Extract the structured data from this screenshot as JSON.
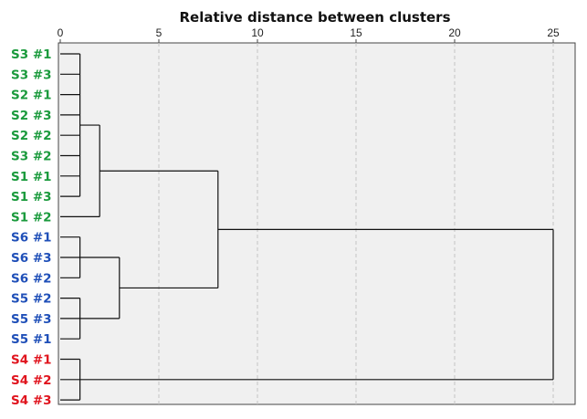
{
  "chart_data": {
    "type": "dendrogram",
    "title": "Relative distance between clusters",
    "xlim": [
      0,
      25
    ],
    "x_ticks": [
      0,
      5,
      10,
      15,
      20,
      25
    ],
    "grid": "vertical dashed lines at tick positions",
    "leaves": [
      {
        "label": "S3 #1",
        "group": "S3",
        "color": "#1a9a3c"
      },
      {
        "label": "S3 #3",
        "group": "S3",
        "color": "#1a9a3c"
      },
      {
        "label": "S2 #1",
        "group": "S2",
        "color": "#1a9a3c"
      },
      {
        "label": "S2 #3",
        "group": "S2",
        "color": "#1a9a3c"
      },
      {
        "label": "S2 #2",
        "group": "S2",
        "color": "#1a9a3c"
      },
      {
        "label": "S3 #2",
        "group": "S3",
        "color": "#1a9a3c"
      },
      {
        "label": "S1 #1",
        "group": "S1",
        "color": "#1a9a3c"
      },
      {
        "label": "S1 #3",
        "group": "S1",
        "color": "#1a9a3c"
      },
      {
        "label": "S1 #2",
        "group": "S1",
        "color": "#1a9a3c"
      },
      {
        "label": "S6 #1",
        "group": "S6",
        "color": "#1f4fb8"
      },
      {
        "label": "S6 #3",
        "group": "S6",
        "color": "#1f4fb8"
      },
      {
        "label": "S6 #2",
        "group": "S6",
        "color": "#1f4fb8"
      },
      {
        "label": "S5 #2",
        "group": "S5",
        "color": "#1f4fb8"
      },
      {
        "label": "S5 #3",
        "group": "S5",
        "color": "#1f4fb8"
      },
      {
        "label": "S5 #1",
        "group": "S5",
        "color": "#1f4fb8"
      },
      {
        "label": "S4 #1",
        "group": "S4",
        "color": "#e0141e"
      },
      {
        "label": "S4 #2",
        "group": "S4",
        "color": "#e0141e"
      },
      {
        "label": "S4 #3",
        "group": "S4",
        "color": "#e0141e"
      }
    ],
    "merges": [
      {
        "id": "A",
        "children": [
          0,
          1,
          2,
          3,
          4,
          5,
          6,
          7
        ],
        "height": 1
      },
      {
        "id": "B",
        "children": [
          "A",
          8
        ],
        "height": 2
      },
      {
        "id": "C",
        "children": [
          9,
          10,
          11
        ],
        "height": 1
      },
      {
        "id": "D",
        "children": [
          12,
          13,
          14
        ],
        "height": 1
      },
      {
        "id": "E",
        "children": [
          "C",
          "D"
        ],
        "height": 3
      },
      {
        "id": "F",
        "children": [
          "B",
          "E"
        ],
        "height": 8
      },
      {
        "id": "G",
        "children": [
          15,
          16,
          17
        ],
        "height": 1
      },
      {
        "id": "H",
        "children": [
          "F",
          "G"
        ],
        "height": 25
      }
    ]
  }
}
